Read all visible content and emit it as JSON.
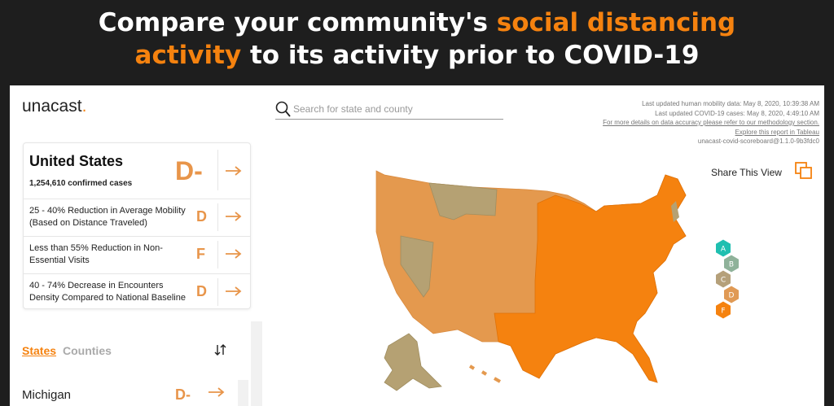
{
  "banner": {
    "lines": [
      [
        {
          "text": "Compare your community's ",
          "accent": false
        },
        {
          "text": "social distancing",
          "accent": true
        }
      ],
      [
        {
          "text": "activity",
          "accent": true
        },
        {
          "text": " to its activity prior to COVID-19",
          "accent": false
        }
      ]
    ]
  },
  "logo": {
    "word": "unacast",
    "dot": "."
  },
  "summary": {
    "name": "United States",
    "cases": "1,254,610 confirmed cases",
    "grade": "D-",
    "metrics": [
      {
        "label_lines": [
          "25 - 40% Reduction in Average Mobility",
          "(Based on Distance Traveled)"
        ],
        "grade": "D"
      },
      {
        "label_lines": [
          "Less than 55% Reduction in Non-",
          "Essential Visits"
        ],
        "grade": "F"
      },
      {
        "label_lines": [
          "40 - 74% Decrease in Encounters",
          "Density Compared to National Baseline"
        ],
        "grade": "D"
      }
    ]
  },
  "tabs": [
    "States",
    "Counties"
  ],
  "list": [
    {
      "name": "Michigan",
      "grade": "D-"
    }
  ],
  "search": {
    "placeholder": "Search for state and county"
  },
  "info_lines": [
    "Last updated human mobility data: May 8, 2020, 10:39:38 AM",
    "Last updated COVID-19 cases: May 8, 2020, 4:49:10 AM",
    "For more details on data accuracy please refer to our methodology section.",
    "Explore this report in Tableau",
    "unacast-covid-scoreboard@1.1.0-9b3fdc0"
  ],
  "share": "Share This View",
  "legend": [
    "A",
    "B",
    "C",
    "D",
    "F"
  ]
}
